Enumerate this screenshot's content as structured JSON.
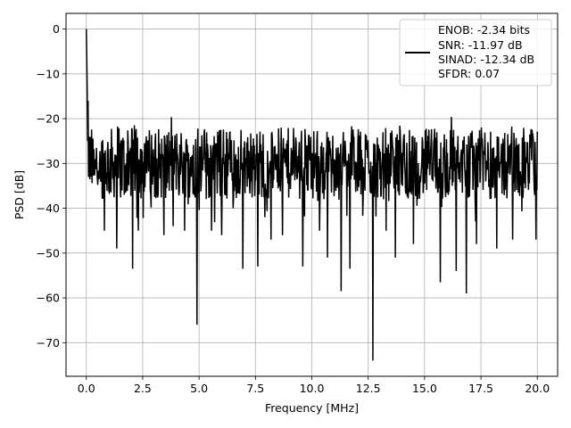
{
  "chart_data": {
    "type": "line",
    "title": "",
    "xlabel": "Frequency [MHz]",
    "ylabel": "PSD [dB]",
    "xlim": [
      -0.9,
      20.9
    ],
    "ylim": [
      -77.5,
      3.5
    ],
    "x_ticks": [
      0.0,
      2.5,
      5.0,
      7.5,
      10.0,
      12.5,
      15.0,
      17.5,
      20.0
    ],
    "x_tick_labels": [
      "0.0",
      "2.5",
      "5.0",
      "7.5",
      "10.0",
      "12.5",
      "15.0",
      "17.5",
      "20.0"
    ],
    "y_ticks": [
      0,
      -10,
      -20,
      -30,
      -40,
      -50,
      -60,
      -70
    ],
    "y_tick_labels": [
      "0",
      "−10",
      "−20",
      "−30",
      "−40",
      "−50",
      "−60",
      "−70"
    ],
    "grid": true,
    "legend_position": "top-right",
    "series": [
      {
        "color": "#000000",
        "x_range": [
          0,
          20
        ],
        "points": 1024,
        "noise_floor_db": -30,
        "upper_envelope_db": -22,
        "lower_envelope_db": -38,
        "dc_peak": {
          "x": 0.0,
          "y": 0
        },
        "deep_notches": [
          {
            "x": 0.8,
            "y": -45
          },
          {
            "x": 1.35,
            "y": -49
          },
          {
            "x": 2.05,
            "y": -53.5
          },
          {
            "x": 2.3,
            "y": -45
          },
          {
            "x": 3.45,
            "y": -46
          },
          {
            "x": 3.85,
            "y": -44
          },
          {
            "x": 4.35,
            "y": -45
          },
          {
            "x": 4.9,
            "y": -66
          },
          {
            "x": 5.55,
            "y": -45
          },
          {
            "x": 6.0,
            "y": -46
          },
          {
            "x": 6.95,
            "y": -53.5
          },
          {
            "x": 7.6,
            "y": -53
          },
          {
            "x": 8.2,
            "y": -47
          },
          {
            "x": 8.7,
            "y": -46
          },
          {
            "x": 9.6,
            "y": -53
          },
          {
            "x": 10.35,
            "y": -45
          },
          {
            "x": 10.7,
            "y": -51
          },
          {
            "x": 11.3,
            "y": -58.5
          },
          {
            "x": 11.7,
            "y": -53.5
          },
          {
            "x": 12.7,
            "y": -74
          },
          {
            "x": 13.3,
            "y": -45
          },
          {
            "x": 13.7,
            "y": -51
          },
          {
            "x": 14.5,
            "y": -48
          },
          {
            "x": 15.7,
            "y": -56.5
          },
          {
            "x": 16.4,
            "y": -54
          },
          {
            "x": 16.85,
            "y": -59
          },
          {
            "x": 17.3,
            "y": -48
          },
          {
            "x": 18.2,
            "y": -49
          },
          {
            "x": 18.9,
            "y": -47
          },
          {
            "x": 19.95,
            "y": -47
          }
        ]
      }
    ],
    "legend": {
      "lines": [
        "ENOB: -2.34 bits",
        "SNR: -11.97 dB",
        "SINAD: -12.34 dB",
        "SFDR: 0.07"
      ]
    }
  }
}
